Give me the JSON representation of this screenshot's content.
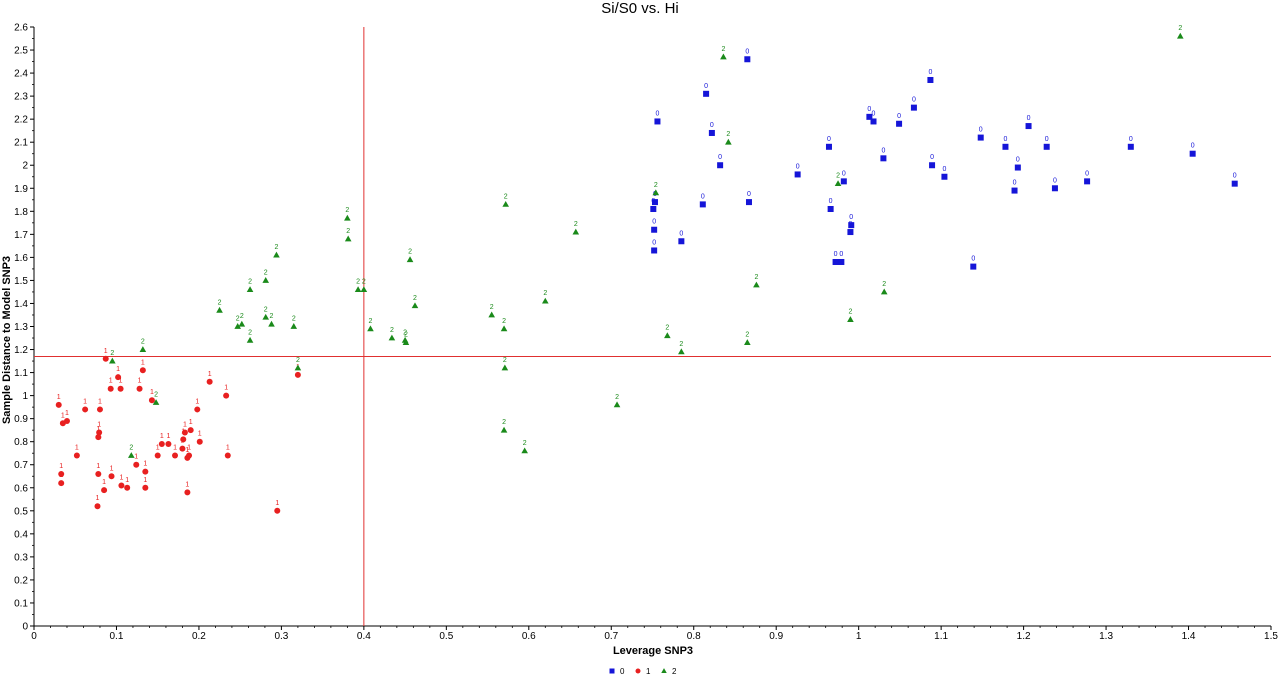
{
  "chart_data": {
    "type": "scatter",
    "title": "Si/S0 vs. Hi",
    "xlabel": "Leverage SNP3",
    "ylabel": "Sample Distance to Model  SNP3",
    "xlim": [
      0,
      1.5
    ],
    "ylim": [
      0,
      2.6
    ],
    "x_ticks": [
      "0",
      "0.1",
      "0.2",
      "0.3",
      "0.4",
      "0.5",
      "0.6",
      "0.7",
      "0.8",
      "0.9",
      "1",
      "1.1",
      "1.2",
      "1.3",
      "1.4",
      "1.5"
    ],
    "y_ticks": [
      "0",
      "0.1",
      "0.2",
      "0.3",
      "0.4",
      "0.5",
      "0.6",
      "0.7",
      "0.8",
      "0.9",
      "1",
      "1.1",
      "1.2",
      "1.3",
      "1.4",
      "1.5",
      "1.6",
      "1.7",
      "1.8",
      "1.9",
      "2",
      "2.1",
      "2.2",
      "2.3",
      "2.4",
      "2.5",
      "2.6"
    ],
    "reference_lines": {
      "x": 0.4,
      "y": 1.17,
      "color": "#e03030"
    },
    "grid": false,
    "legend_position": "bottom-center",
    "series": [
      {
        "name": "0",
        "marker": "square",
        "color": "#1515d8",
        "label_color": "#1515d8",
        "point_label": "0",
        "points": [
          [
            0.756,
            2.19
          ],
          [
            0.815,
            2.31
          ],
          [
            0.865,
            2.46
          ],
          [
            0.822,
            2.14
          ],
          [
            0.832,
            2.0
          ],
          [
            0.753,
            1.84
          ],
          [
            0.751,
            1.81
          ],
          [
            0.752,
            1.72
          ],
          [
            0.752,
            1.63
          ],
          [
            0.785,
            1.67
          ],
          [
            0.811,
            1.83
          ],
          [
            0.867,
            1.84
          ],
          [
            0.926,
            1.96
          ],
          [
            0.964,
            2.08
          ],
          [
            0.966,
            1.81
          ],
          [
            0.972,
            1.58
          ],
          [
            0.979,
            1.58
          ],
          [
            0.982,
            1.93
          ],
          [
            0.99,
            1.71
          ],
          [
            0.991,
            1.74
          ],
          [
            1.013,
            2.21
          ],
          [
            1.018,
            2.19
          ],
          [
            1.03,
            2.03
          ],
          [
            1.049,
            2.18
          ],
          [
            1.067,
            2.25
          ],
          [
            1.087,
            2.37
          ],
          [
            1.089,
            2.0
          ],
          [
            1.104,
            1.95
          ],
          [
            1.139,
            1.56
          ],
          [
            1.148,
            2.12
          ],
          [
            1.178,
            2.08
          ],
          [
            1.189,
            1.89
          ],
          [
            1.193,
            1.99
          ],
          [
            1.206,
            2.17
          ],
          [
            1.228,
            2.08
          ],
          [
            1.238,
            1.9
          ],
          [
            1.277,
            1.93
          ],
          [
            1.33,
            2.08
          ],
          [
            1.405,
            2.05
          ],
          [
            1.456,
            1.92
          ]
        ]
      },
      {
        "name": "1",
        "marker": "circle",
        "color": "#e82020",
        "label_color": "#e82020",
        "point_label": "1",
        "points": [
          [
            0.03,
            0.96
          ],
          [
            0.035,
            0.88
          ],
          [
            0.04,
            0.89
          ],
          [
            0.033,
            0.66
          ],
          [
            0.033,
            0.62
          ],
          [
            0.052,
            0.74
          ],
          [
            0.062,
            0.94
          ],
          [
            0.08,
            0.94
          ],
          [
            0.087,
            1.16
          ],
          [
            0.093,
            1.03
          ],
          [
            0.102,
            1.08
          ],
          [
            0.105,
            1.03
          ],
          [
            0.078,
            0.82
          ],
          [
            0.079,
            0.84
          ],
          [
            0.078,
            0.66
          ],
          [
            0.077,
            0.52
          ],
          [
            0.085,
            0.59
          ],
          [
            0.094,
            0.65
          ],
          [
            0.106,
            0.61
          ],
          [
            0.113,
            0.6
          ],
          [
            0.124,
            0.7
          ],
          [
            0.128,
            1.03
          ],
          [
            0.132,
            1.11
          ],
          [
            0.135,
            0.67
          ],
          [
            0.135,
            0.6
          ],
          [
            0.143,
            0.98
          ],
          [
            0.15,
            0.74
          ],
          [
            0.155,
            0.79
          ],
          [
            0.163,
            0.79
          ],
          [
            0.171,
            0.74
          ],
          [
            0.18,
            0.77
          ],
          [
            0.181,
            0.81
          ],
          [
            0.183,
            0.84
          ],
          [
            0.186,
            0.73
          ],
          [
            0.188,
            0.74
          ],
          [
            0.19,
            0.85
          ],
          [
            0.186,
            0.58
          ],
          [
            0.198,
            0.94
          ],
          [
            0.201,
            0.8
          ],
          [
            0.213,
            1.06
          ],
          [
            0.233,
            1.0
          ],
          [
            0.235,
            0.74
          ],
          [
            0.295,
            0.5
          ],
          [
            0.32,
            1.09
          ]
        ]
      },
      {
        "name": "2",
        "marker": "triangle",
        "color": "#1a8a1a",
        "label_color": "#1a8a1a",
        "point_label": "2",
        "points": [
          [
            0.095,
            1.15
          ],
          [
            0.132,
            1.2
          ],
          [
            0.148,
            0.97
          ],
          [
            0.118,
            0.74
          ],
          [
            0.225,
            1.37
          ],
          [
            0.247,
            1.3
          ],
          [
            0.252,
            1.31
          ],
          [
            0.262,
            1.24
          ],
          [
            0.262,
            1.46
          ],
          [
            0.281,
            1.34
          ],
          [
            0.281,
            1.5
          ],
          [
            0.288,
            1.31
          ],
          [
            0.294,
            1.61
          ],
          [
            0.315,
            1.3
          ],
          [
            0.32,
            1.12
          ],
          [
            0.38,
            1.77
          ],
          [
            0.381,
            1.68
          ],
          [
            0.393,
            1.46
          ],
          [
            0.4,
            1.46
          ],
          [
            0.408,
            1.29
          ],
          [
            0.434,
            1.25
          ],
          [
            0.45,
            1.24
          ],
          [
            0.451,
            1.23
          ],
          [
            0.456,
            1.59
          ],
          [
            0.462,
            1.39
          ],
          [
            0.555,
            1.35
          ],
          [
            0.57,
            0.85
          ],
          [
            0.572,
            1.83
          ],
          [
            0.57,
            1.29
          ],
          [
            0.571,
            1.12
          ],
          [
            0.595,
            0.76
          ],
          [
            0.62,
            1.41
          ],
          [
            0.657,
            1.71
          ],
          [
            0.707,
            0.96
          ],
          [
            0.754,
            1.88
          ],
          [
            0.768,
            1.26
          ],
          [
            0.785,
            1.19
          ],
          [
            0.836,
            2.47
          ],
          [
            0.842,
            2.1
          ],
          [
            0.865,
            1.23
          ],
          [
            0.876,
            1.48
          ],
          [
            0.975,
            1.92
          ],
          [
            0.99,
            1.33
          ],
          [
            1.031,
            1.45
          ],
          [
            1.39,
            2.56
          ]
        ]
      }
    ]
  }
}
